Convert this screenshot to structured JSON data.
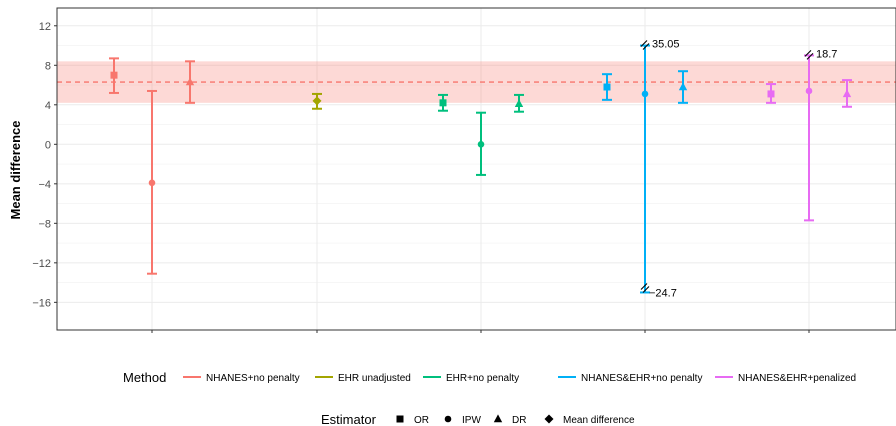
{
  "chart_data": {
    "type": "errorbar",
    "ylabel": "Mean difference",
    "ylim": [
      -18.8,
      13.8
    ],
    "yticks": [
      12,
      8,
      4,
      0,
      -4,
      -8,
      -12,
      -16
    ],
    "ytick_labels": [
      "12",
      "8",
      "4",
      "0",
      "−4",
      "−8",
      "−12",
      "−16"
    ],
    "grid": true,
    "reference": {
      "line": 6.3,
      "band": [
        4.2,
        8.4
      ],
      "line_color": "#F8766D",
      "band_color": "#F8766D"
    },
    "methods": [
      {
        "name": "NHANES+no penalty",
        "color": "#F8766D"
      },
      {
        "name": "EHR unadjusted",
        "color": "#A3A500"
      },
      {
        "name": "EHR+no penalty",
        "color": "#00BF7D"
      },
      {
        "name": "NHANES&EHR+no penalty",
        "color": "#00B0F6"
      },
      {
        "name": "NHANES&EHR+penalized",
        "color": "#E76BF3"
      }
    ],
    "estimators": [
      {
        "name": "OR",
        "shape": "square"
      },
      {
        "name": "IPW",
        "shape": "circle"
      },
      {
        "name": "DR",
        "shape": "triangle"
      },
      {
        "name": "Mean difference",
        "shape": "diamond"
      }
    ],
    "points": [
      {
        "method": 0,
        "estimator": "OR",
        "group": 1,
        "y": 7.0,
        "lo": 5.2,
        "hi": 8.7
      },
      {
        "method": 0,
        "estimator": "IPW",
        "group": 1,
        "y": -3.9,
        "lo": -13.1,
        "hi": 5.4
      },
      {
        "method": 0,
        "estimator": "DR",
        "group": 1,
        "y": 6.3,
        "lo": 4.2,
        "hi": 8.4
      },
      {
        "method": 1,
        "estimator": "Mean difference",
        "group": 2,
        "y": 4.4,
        "lo": 3.6,
        "hi": 5.1
      },
      {
        "method": 2,
        "estimator": "OR",
        "group": 3,
        "y": 4.2,
        "lo": 3.4,
        "hi": 5.0
      },
      {
        "method": 2,
        "estimator": "IPW",
        "group": 3,
        "y": 0.0,
        "lo": -3.1,
        "hi": 3.2
      },
      {
        "method": 2,
        "estimator": "DR",
        "group": 3,
        "y": 4.1,
        "lo": 3.3,
        "hi": 5.0
      },
      {
        "method": 3,
        "estimator": "OR",
        "group": 4,
        "y": 5.8,
        "lo": 4.5,
        "hi": 7.1
      },
      {
        "method": 3,
        "estimator": "IPW",
        "group": 4,
        "y": 5.1,
        "lo": -15.0,
        "hi": 10.0,
        "lo_label": "−24.7",
        "hi_label": "35.05"
      },
      {
        "method": 3,
        "estimator": "DR",
        "group": 4,
        "y": 5.8,
        "lo": 4.2,
        "hi": 7.4
      },
      {
        "method": 4,
        "estimator": "OR",
        "group": 5,
        "y": 5.1,
        "lo": 4.2,
        "hi": 6.1
      },
      {
        "method": 4,
        "estimator": "IPW",
        "group": 5,
        "y": 5.4,
        "lo": -7.7,
        "hi": 9.0,
        "hi_label": "18.7"
      },
      {
        "method": 4,
        "estimator": "DR",
        "group": 5,
        "y": 5.1,
        "lo": 3.8,
        "hi": 6.5
      }
    ],
    "legend": {
      "method_title": "Method",
      "estimator_title": "Estimator",
      "placement": "bottom"
    }
  }
}
